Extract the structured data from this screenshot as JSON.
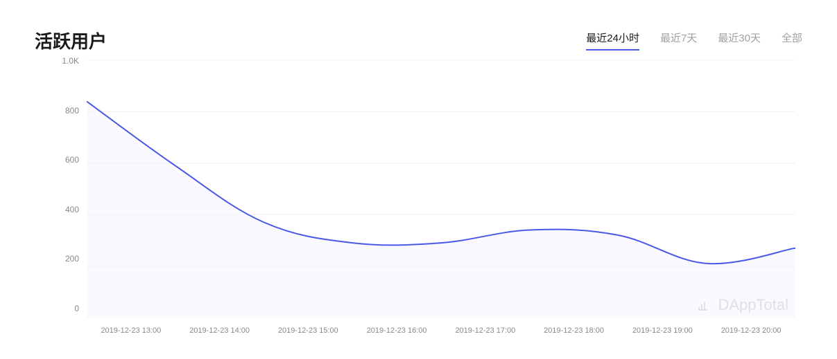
{
  "title": "活跃用户",
  "tabs": [
    {
      "label": "最近24小时",
      "active": true
    },
    {
      "label": "最近7天",
      "active": false
    },
    {
      "label": "最近30天",
      "active": false
    },
    {
      "label": "全部",
      "active": false
    }
  ],
  "watermark": "DAppTotal",
  "chart": {
    "type": "area",
    "background_color": "#ffffff",
    "grid_color": "#f0f0f0",
    "line_color": "#4a57e8",
    "line_width": 2,
    "fill_color": "#f4f4ff",
    "fill_opacity": 0.5,
    "y_axis": {
      "min": 0,
      "max": 1000,
      "ticks": [
        "1.0K",
        "800",
        "600",
        "400",
        "200",
        "0"
      ],
      "tick_values": [
        1000,
        800,
        600,
        400,
        200,
        0
      ],
      "label_color": "#888888",
      "label_fontsize": 12
    },
    "x_axis": {
      "labels": [
        "2019-12-23 13:00",
        "2019-12-23 14:00",
        "2019-12-23 15:00",
        "2019-12-23 16:00",
        "2019-12-23 17:00",
        "2019-12-23 18:00",
        "2019-12-23 19:00",
        "2019-12-23 20:00"
      ],
      "label_color": "#888888",
      "label_fontsize": 11
    },
    "data_points": [
      {
        "x": 0,
        "y": 840
      },
      {
        "x": 1,
        "y": 590
      },
      {
        "x": 2,
        "y": 370
      },
      {
        "x": 3,
        "y": 290
      },
      {
        "x": 4,
        "y": 290
      },
      {
        "x": 5,
        "y": 340
      },
      {
        "x": 6,
        "y": 320
      },
      {
        "x": 7,
        "y": 210
      },
      {
        "x": 8,
        "y": 270
      }
    ],
    "x_range": [
      0,
      8
    ],
    "fill_start_x": 0
  }
}
